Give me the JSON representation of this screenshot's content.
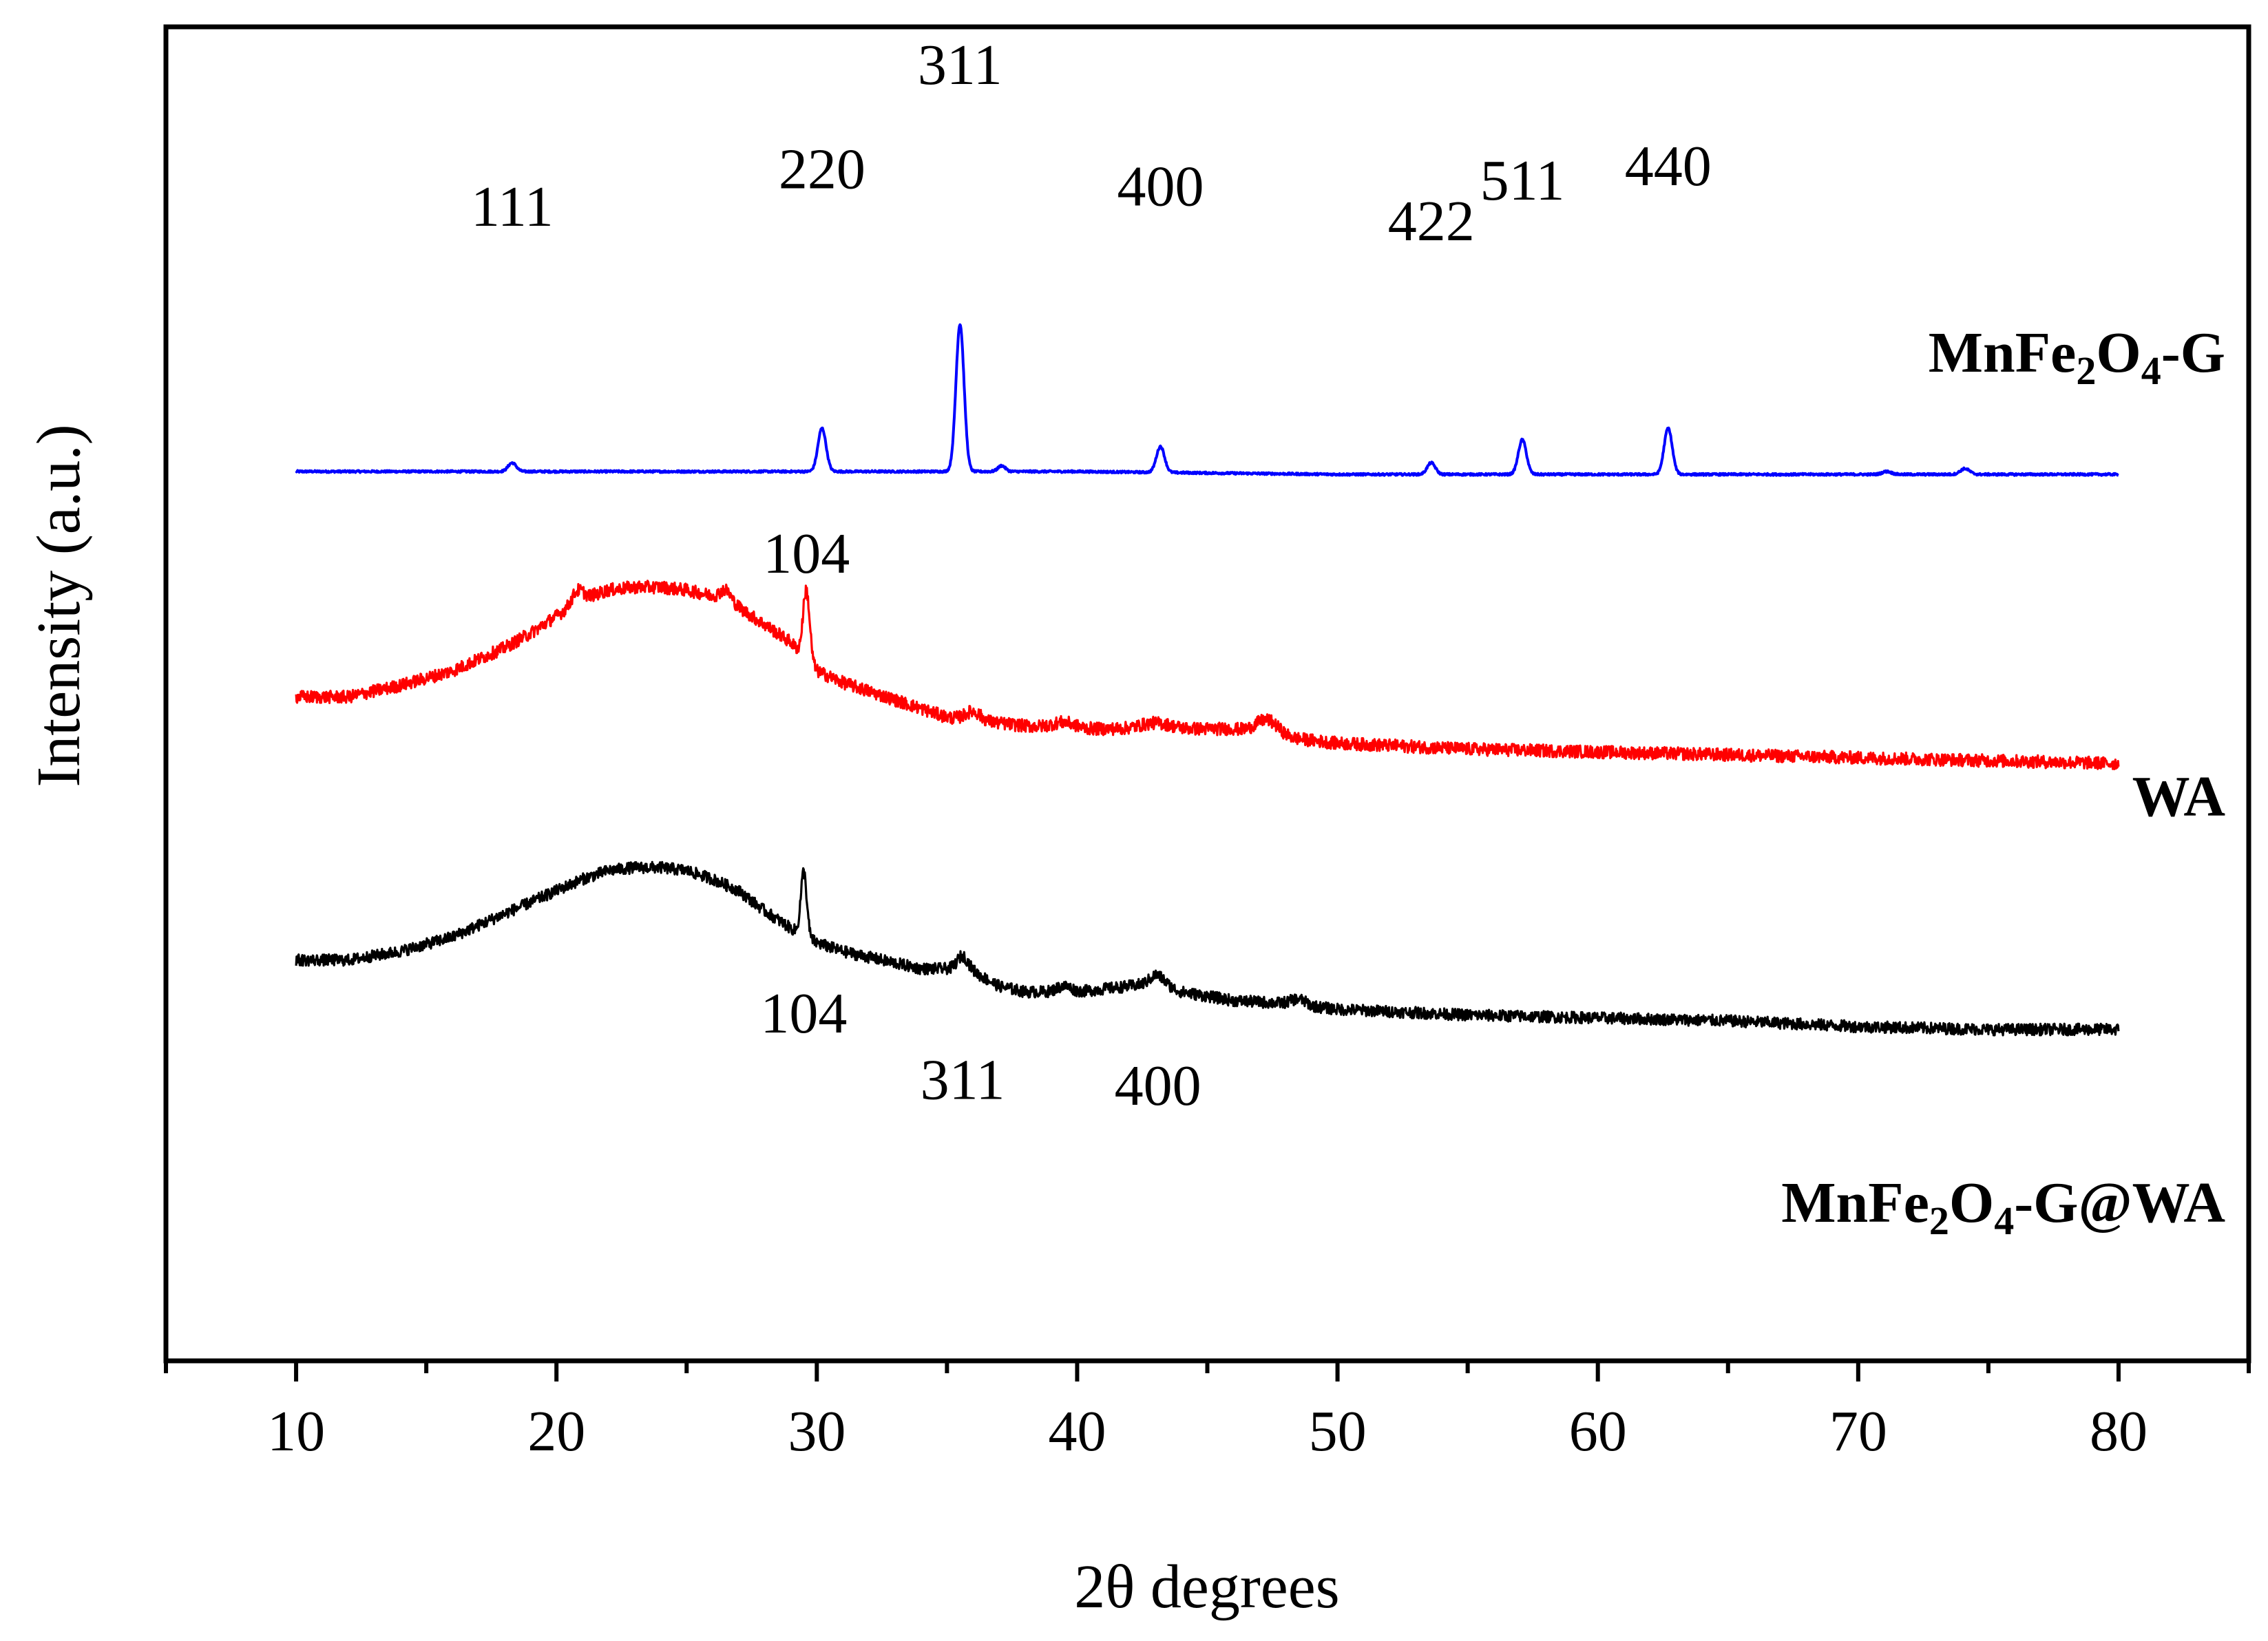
{
  "chart_data": {
    "type": "line",
    "xlabel": "2θ degrees",
    "ylabel": "Intensity (a.u.)",
    "xlim": [
      5,
      85
    ],
    "xticks": [
      10,
      20,
      30,
      40,
      50,
      60,
      70,
      80
    ],
    "yticks": [],
    "grid": false,
    "series": [
      {
        "name": "MnFe2O4-G",
        "label_main": "MnFe",
        "label_sub1": "2",
        "label_mid": "O",
        "label_sub2": "4",
        "label_tail": "-G",
        "color": "#0000ff",
        "offset": 75,
        "noise": 0.35,
        "points": [
          [
            10,
            0
          ],
          [
            20,
            0
          ],
          [
            30,
            0
          ],
          [
            40,
            0
          ],
          [
            50,
            -1
          ],
          [
            60,
            -1
          ],
          [
            70,
            -1
          ],
          [
            80,
            -1
          ]
        ],
        "peaks": [
          {
            "x": 18.3,
            "height": 3,
            "width": 0.22
          },
          {
            "x": 30.2,
            "height": 15,
            "width": 0.22
          },
          {
            "x": 35.5,
            "height": 51,
            "width": 0.22
          },
          {
            "x": 37.1,
            "height": 2,
            "width": 0.2
          },
          {
            "x": 43.2,
            "height": 9,
            "width": 0.22
          },
          {
            "x": 53.6,
            "height": 4,
            "width": 0.22
          },
          {
            "x": 57.1,
            "height": 12,
            "width": 0.22
          },
          {
            "x": 62.7,
            "height": 16,
            "width": 0.22
          },
          {
            "x": 71.1,
            "height": 1,
            "width": 0.25
          },
          {
            "x": 74.1,
            "height": 2,
            "width": 0.25
          }
        ],
        "peak_labels": [
          {
            "x": 18.3,
            "y": 85,
            "text": "111"
          },
          {
            "x": 30.2,
            "y": 98,
            "text": "220"
          },
          {
            "x": 35.5,
            "y": 134,
            "text": "311"
          },
          {
            "x": 43.2,
            "y": 92,
            "text": "400"
          },
          {
            "x": 53.6,
            "y": 80,
            "text": "422"
          },
          {
            "x": 57.1,
            "y": 94,
            "text": "511"
          },
          {
            "x": 62.7,
            "y": 99,
            "text": "440"
          }
        ]
      },
      {
        "name": "WA",
        "label_main": "WA",
        "color": "#ff0000",
        "offset": 0,
        "noise": 2.2,
        "points": [
          [
            10,
            -3
          ],
          [
            12,
            -3
          ],
          [
            14,
            1
          ],
          [
            16,
            6
          ],
          [
            18,
            14
          ],
          [
            19,
            19
          ],
          [
            20,
            25
          ],
          [
            21,
            31
          ],
          [
            22,
            34
          ],
          [
            23,
            35
          ],
          [
            24,
            35
          ],
          [
            25,
            34
          ],
          [
            26,
            32
          ],
          [
            27,
            28
          ],
          [
            28,
            22
          ],
          [
            29,
            16
          ],
          [
            30,
            6
          ],
          [
            31,
            2
          ],
          [
            32,
            -1
          ],
          [
            33,
            -4
          ],
          [
            34,
            -7
          ],
          [
            35,
            -10
          ],
          [
            36,
            -11
          ],
          [
            38,
            -13
          ],
          [
            40,
            -14
          ],
          [
            42,
            -14
          ],
          [
            44,
            -14
          ],
          [
            46,
            -14
          ],
          [
            48,
            -17
          ],
          [
            50,
            -19
          ],
          [
            55,
            -21
          ],
          [
            60,
            -22
          ],
          [
            65,
            -23
          ],
          [
            70,
            -24
          ],
          [
            75,
            -25
          ],
          [
            80,
            -26
          ]
        ],
        "peaks": [
          {
            "x": 29.6,
            "height": 24,
            "width": 0.18
          },
          {
            "x": 20.8,
            "height": 4,
            "width": 0.3
          },
          {
            "x": 26.5,
            "height": 4,
            "width": 0.3
          },
          {
            "x": 36.0,
            "height": 3,
            "width": 0.4
          },
          {
            "x": 47.3,
            "height": 5,
            "width": 0.6
          },
          {
            "x": 43.0,
            "height": 2,
            "width": 0.8
          },
          {
            "x": 39.5,
            "height": 2,
            "width": 0.6
          }
        ],
        "peak_labels": [
          {
            "x": 29.6,
            "y": 40,
            "text": "104"
          }
        ]
      },
      {
        "name": "MnFe2O4-G@WA",
        "label_main": "MnFe",
        "label_sub1": "2",
        "label_mid": "O",
        "label_sub2": "4",
        "label_tail": "-G@WA",
        "color": "#000000",
        "offset": -95,
        "noise": 2.0,
        "points": [
          [
            10,
            1
          ],
          [
            12,
            1
          ],
          [
            14,
            4
          ],
          [
            16,
            9
          ],
          [
            18,
            17
          ],
          [
            20,
            25
          ],
          [
            21,
            29
          ],
          [
            22,
            32
          ],
          [
            23,
            33
          ],
          [
            24,
            33
          ],
          [
            25,
            32
          ],
          [
            26,
            29
          ],
          [
            27,
            25
          ],
          [
            28,
            18
          ],
          [
            29,
            12
          ],
          [
            30,
            7
          ],
          [
            31,
            4
          ],
          [
            32,
            2
          ],
          [
            33,
            0
          ],
          [
            34,
            -2
          ],
          [
            35,
            -2
          ],
          [
            36,
            -3
          ],
          [
            37,
            -8
          ],
          [
            38,
            -10
          ],
          [
            40,
            -10
          ],
          [
            42,
            -8
          ],
          [
            43,
            -7
          ],
          [
            44,
            -10
          ],
          [
            46,
            -13
          ],
          [
            48,
            -14
          ],
          [
            50,
            -16
          ],
          [
            55,
            -18
          ],
          [
            60,
            -19
          ],
          [
            65,
            -20
          ],
          [
            70,
            -22
          ],
          [
            75,
            -23
          ],
          [
            80,
            -23
          ]
        ],
        "peaks": [
          {
            "x": 29.5,
            "height": 22,
            "width": 0.16
          },
          {
            "x": 35.6,
            "height": 5,
            "width": 0.3
          },
          {
            "x": 43.1,
            "height": 3,
            "width": 0.4
          },
          {
            "x": 39.5,
            "height": 2,
            "width": 0.4
          },
          {
            "x": 48.5,
            "height": 2,
            "width": 0.4
          }
        ],
        "peak_labels": [
          {
            "x": 29.5,
            "y": -24,
            "text": "104"
          },
          {
            "x": 35.6,
            "y": -47,
            "text": "311"
          },
          {
            "x": 43.1,
            "y": -49,
            "text": "400"
          }
        ]
      }
    ]
  }
}
